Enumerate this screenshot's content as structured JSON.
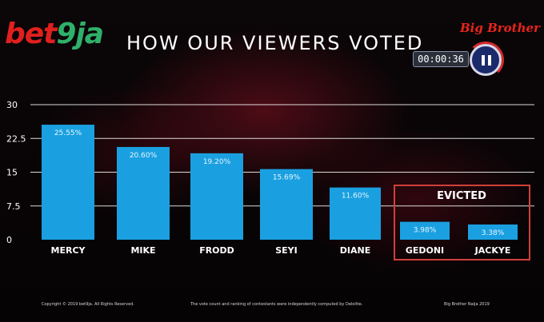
{
  "brand": {
    "logo_text_a": "bet",
    "logo_text_b": "9",
    "logo_text_c": "ja",
    "show_logo": "Big Brother"
  },
  "header": {
    "title": "HOW OUR VIEWERS VOTED"
  },
  "player": {
    "timer": "00:00:36",
    "pause_icon": "pause-icon"
  },
  "evicted_label": "EVICTED",
  "footer": {
    "copyright": "Copyright © 2019 bet9ja. All Rights Reserved.",
    "disclaimer": "The vote count and ranking of contestants were independently computed by Deloitte.",
    "show": "Big Brother Naija 2019"
  },
  "colors": {
    "bar": "#1aa0e0",
    "grid": "#ffffff",
    "evicted_box": "#d0403a",
    "text": "#ffffff"
  },
  "chart_data": {
    "type": "bar",
    "categories": [
      "MERCY",
      "MIKE",
      "FRODD",
      "SEYI",
      "DIANE",
      "GEDONI",
      "JACKYE"
    ],
    "values": [
      25.55,
      20.6,
      19.2,
      15.69,
      11.6,
      3.98,
      3.38
    ],
    "data_labels": [
      "25.55%",
      "20.60%",
      "19.20%",
      "15.69%",
      "11.60%",
      "3.98%",
      "3.38%"
    ],
    "evicted": [
      "GEDONI",
      "JACKYE"
    ],
    "yticks": [
      "0",
      "7.5",
      "15",
      "22.5",
      "30"
    ],
    "ylim": [
      0,
      30
    ],
    "grid": true
  }
}
